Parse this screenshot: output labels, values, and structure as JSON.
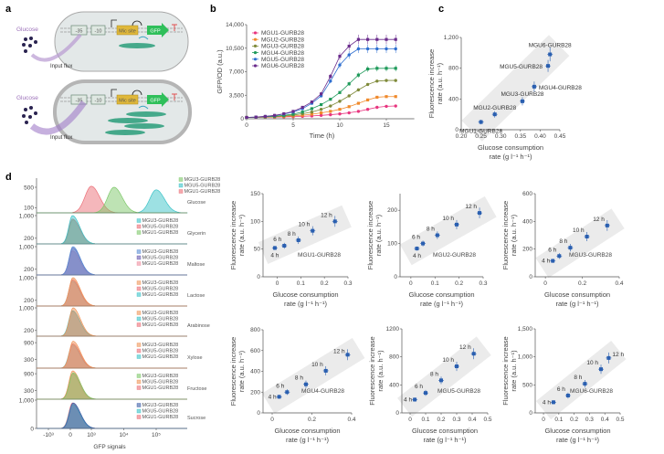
{
  "panel_labels": {
    "a": "a",
    "b": "b",
    "c": "c",
    "d": "d"
  },
  "panel_a": {
    "glucose_label": "Glucose",
    "input_flux_label": "Input flux",
    "minus35": "-35",
    "minus10": "-10",
    "mic_site": "Mic site",
    "gfp": "GFP",
    "colors": {
      "glucose": "#9b6fb8",
      "mic_site": "#e0b83a",
      "gfp": "#2fbf5a",
      "dna": "#2a9d7a",
      "terminator": "#e05050"
    }
  },
  "chart_data": [
    {
      "id": "b",
      "type": "line",
      "xlabel": "Time (h)",
      "ylabel": "GFP/OD (a.u.)",
      "xlim": [
        0,
        18
      ],
      "ylim": [
        0,
        14000
      ],
      "xticks": [
        0,
        5,
        10,
        15
      ],
      "yticks": [
        0,
        3500,
        7000,
        10500,
        14000
      ],
      "ytick_labels": [
        "0",
        "3,500",
        "7,000",
        "10,500",
        "14,000"
      ],
      "legend": "top-left",
      "x": [
        0,
        1,
        2,
        3,
        4,
        5,
        6,
        7,
        8,
        9,
        10,
        11,
        12,
        13,
        14,
        15,
        16
      ],
      "series": [
        {
          "name": "MGU1-GURB28",
          "color": "#e8357f",
          "marker": "circle",
          "values": [
            200,
            200,
            220,
            240,
            270,
            310,
            360,
            420,
            500,
            600,
            720,
            880,
            1100,
            1400,
            1700,
            1850,
            1900
          ]
        },
        {
          "name": "MGU2-GURB28",
          "color": "#f08a2c",
          "marker": "square",
          "values": [
            200,
            210,
            240,
            280,
            340,
            420,
            530,
            680,
            870,
            1100,
            1400,
            1800,
            2300,
            2800,
            3200,
            3300,
            3300
          ]
        },
        {
          "name": "MGU3-GURB28",
          "color": "#7f8a3a",
          "marker": "triangle",
          "values": [
            200,
            220,
            270,
            330,
            420,
            550,
            750,
            1000,
            1400,
            1900,
            2600,
            3400,
            4300,
            5100,
            5600,
            5700,
            5700
          ]
        },
        {
          "name": "MGU4-GURB28",
          "color": "#1f9a5a",
          "marker": "triangle-down",
          "values": [
            200,
            230,
            300,
            380,
            500,
            700,
            1000,
            1500,
            2100,
            2900,
            3900,
            5200,
            6500,
            7400,
            7500,
            7500,
            7500
          ]
        },
        {
          "name": "MGU5-GURB28",
          "color": "#2f6fd0",
          "marker": "diamond",
          "values": [
            200,
            250,
            350,
            480,
            700,
            1000,
            1500,
            2300,
            3400,
            5600,
            8000,
            9500,
            10400,
            10400,
            10400,
            10400,
            10400
          ]
        },
        {
          "name": "MGU6-GURB28",
          "color": "#6a2c8c",
          "marker": "hexagon",
          "values": [
            200,
            250,
            350,
            500,
            750,
            1100,
            1700,
            2500,
            3700,
            6300,
            9300,
            10800,
            11800,
            11800,
            11800,
            11800,
            11800
          ]
        }
      ]
    },
    {
      "id": "c",
      "type": "scatter",
      "xlabel": [
        "Glucose consumption",
        "rate (g l⁻¹ h⁻¹)"
      ],
      "ylabel": [
        "Fluorescence increase",
        "rate (a.u. h⁻¹)"
      ],
      "xlim": [
        0.2,
        0.45
      ],
      "ylim": [
        0,
        1200
      ],
      "xticks": [
        0.2,
        0.25,
        0.3,
        0.35,
        0.4,
        0.45
      ],
      "xtick_labels": [
        "0.20",
        "0.25",
        "0.30",
        "0.35",
        "0.40",
        "0.45"
      ],
      "yticks": [
        0,
        400,
        800,
        1200
      ],
      "ytick_labels": [
        "0",
        "400",
        "800",
        "1,200"
      ],
      "color": "#2a5fb0",
      "points": [
        {
          "label": "MGU1-GURB28",
          "x": 0.25,
          "y": 100
        },
        {
          "label": "MGU2-GURB28",
          "x": 0.285,
          "y": 200
        },
        {
          "label": "MGU3-GURB28",
          "x": 0.355,
          "y": 370
        },
        {
          "label": "MGU4-GURB28",
          "x": 0.385,
          "y": 560
        },
        {
          "label": "MGU5-GURB28",
          "x": 0.42,
          "y": 830
        },
        {
          "label": "MGU6-GURB28",
          "x": 0.425,
          "y": 980
        }
      ]
    },
    {
      "id": "d",
      "type": "histogram",
      "xlabel": "GFP signals",
      "xticks": [
        -1000,
        0,
        1000,
        10000,
        100000
      ],
      "xtick_labels": [
        "-10³",
        "0",
        "10³",
        "10⁴",
        "10⁵"
      ],
      "rows": [
        {
          "condition": "Glucose",
          "ytick_labels": [
            "500",
            "100"
          ],
          "yticks": [
            500,
            100
          ],
          "legend": [
            {
              "name": "MGU3-GURB28",
              "color": "#7ec86a",
              "peak": 5000,
              "height": 500
            },
            {
              "name": "MGU5-GURB28",
              "color": "#3cc3c8",
              "peak": 100000,
              "height": 450
            },
            {
              "name": "MGU1-GURB28",
              "color": "#ec6f78",
              "peak": 1000,
              "height": 520
            }
          ]
        },
        {
          "condition": "Glycerin",
          "ytick_labels": [
            "1,000",
            "200"
          ],
          "yticks": [
            1000,
            200
          ],
          "legend": [
            {
              "name": "MGU3-GURB28",
              "color": "#3cc3c8",
              "peak": 100,
              "height": 1000
            },
            {
              "name": "MGU5-GURB28",
              "color": "#ec6f78",
              "peak": 100,
              "height": 880
            },
            {
              "name": "MGU1-GURB28",
              "color": "#7ec86a",
              "peak": 120,
              "height": 850
            }
          ]
        },
        {
          "condition": "Maltose",
          "ytick_labels": [
            "1,000",
            "200"
          ],
          "yticks": [
            1000,
            200
          ],
          "legend": [
            {
              "name": "MGU3-GURB28",
              "color": "#5b8fd6",
              "peak": 120,
              "height": 1000
            },
            {
              "name": "MGU5-GURB28",
              "color": "#6a5bb0",
              "peak": 120,
              "height": 950
            },
            {
              "name": "MGU1-GURB28",
              "color": "#ef8fa0",
              "peak": 100,
              "height": 850
            }
          ]
        },
        {
          "condition": "Lactose",
          "ytick_labels": [
            "1,000",
            "200"
          ],
          "yticks": [
            1000,
            200
          ],
          "legend": [
            {
              "name": "MGU3-GURB28",
              "color": "#f0965a",
              "peak": 120,
              "height": 1000
            },
            {
              "name": "MGU5-GURB28",
              "color": "#ec6f78",
              "peak": 110,
              "height": 930
            },
            {
              "name": "MGU1-GURB28",
              "color": "#3cc3c8",
              "peak": 100,
              "height": 880
            }
          ]
        },
        {
          "condition": "Arabinose",
          "ytick_labels": [
            "1,000",
            "200"
          ],
          "yticks": [
            1000,
            200
          ],
          "legend": [
            {
              "name": "MGU3-GURB28",
              "color": "#f0965a",
              "peak": 130,
              "height": 1000
            },
            {
              "name": "MGU5-GURB28",
              "color": "#3cc3c8",
              "peak": 100,
              "height": 900
            },
            {
              "name": "MGU1-GURB28",
              "color": "#ec6f78",
              "peak": 110,
              "height": 880
            }
          ]
        },
        {
          "condition": "Xylose",
          "ytick_labels": [
            "900",
            "300"
          ],
          "yticks": [
            900,
            300
          ],
          "legend": [
            {
              "name": "MGU3-GURB28",
              "color": "#f0965a",
              "peak": 130,
              "height": 950
            },
            {
              "name": "MGU5-GURB28",
              "color": "#ec6f78",
              "peak": 120,
              "height": 860
            },
            {
              "name": "MGU1-GURB28",
              "color": "#3cc3c8",
              "peak": 100,
              "height": 820
            }
          ]
        },
        {
          "condition": "Fructose",
          "ytick_labels": [
            "900",
            "300"
          ],
          "yticks": [
            900,
            300
          ],
          "legend": [
            {
              "name": "MGU3-GURB28",
              "color": "#7ec86a",
              "peak": 130,
              "height": 930
            },
            {
              "name": "MGU5-GURB28",
              "color": "#f0965a",
              "peak": 110,
              "height": 1000
            },
            {
              "name": "MGU1-GURB28",
              "color": "#ec6f78",
              "peak": 100,
              "height": 900
            }
          ]
        },
        {
          "condition": "Sucrose",
          "ytick_labels": [
            "1,000",
            "0"
          ],
          "yticks": [
            1000,
            0
          ],
          "legend": [
            {
              "name": "MGU3-GURB28",
              "color": "#3f5fa8",
              "peak": 130,
              "height": 900
            },
            {
              "name": "MGU5-GURB28",
              "color": "#3cc3c8",
              "peak": 110,
              "height": 850
            },
            {
              "name": "MGU1-GURB28",
              "color": "#ec6f78",
              "peak": 100,
              "height": 900
            }
          ]
        }
      ]
    },
    {
      "id": "e1",
      "type": "scatter",
      "strain": "MGU1-GURB28",
      "xlim": [
        -0.06,
        0.3
      ],
      "ylim": [
        0,
        150
      ],
      "xticks": [
        0,
        0.1,
        0.2,
        0.3
      ],
      "xtick_labels": [
        "0",
        "0.1",
        "0.2",
        "0.3"
      ],
      "yticks": [
        0,
        50,
        100,
        150
      ],
      "ytick_labels": [
        "0",
        "50",
        "100",
        "150"
      ],
      "xlabel": [
        "Glucose consumption",
        "rate (g l⁻¹ h⁻¹)"
      ],
      "ylabel": [
        "Fluorescence increase",
        "rate (a.u. h⁻¹)"
      ],
      "points": [
        {
          "label": "4 h",
          "x": -0.01,
          "y": 52
        },
        {
          "label": "6 h",
          "x": 0.03,
          "y": 56
        },
        {
          "label": "8 h",
          "x": 0.09,
          "y": 66
        },
        {
          "label": "10 h",
          "x": 0.15,
          "y": 83
        },
        {
          "label": "12 h",
          "x": 0.245,
          "y": 100
        }
      ]
    },
    {
      "id": "e2",
      "type": "scatter",
      "strain": "MGU2-GURB28",
      "xlim": [
        -0.045,
        0.3
      ],
      "ylim": [
        0,
        250
      ],
      "xticks": [
        0,
        0.1,
        0.2,
        0.3
      ],
      "xtick_labels": [
        "0",
        "0.1",
        "0.2",
        "0.3"
      ],
      "yticks": [
        0,
        100,
        200
      ],
      "ytick_labels": [
        "0",
        "100",
        "200"
      ],
      "xlabel": [
        "Glucose consumption",
        "rate (g l⁻¹ h⁻¹)"
      ],
      "ylabel": [
        "Fluorescence increase",
        "rate (a.u. h⁻¹)"
      ],
      "points": [
        {
          "label": "4 h",
          "x": 0.025,
          "y": 85
        },
        {
          "label": "6 h",
          "x": 0.05,
          "y": 100
        },
        {
          "label": "8 h",
          "x": 0.11,
          "y": 125
        },
        {
          "label": "10 h",
          "x": 0.19,
          "y": 157
        },
        {
          "label": "12 h",
          "x": 0.285,
          "y": 192
        }
      ]
    },
    {
      "id": "e3",
      "type": "scatter",
      "strain": "MGU3-GURB28",
      "xlim": [
        -0.055,
        0.4
      ],
      "ylim": [
        0,
        600
      ],
      "xticks": [
        0,
        0.2,
        0.4
      ],
      "xtick_labels": [
        "0",
        "0.2",
        "0.4"
      ],
      "yticks": [
        0,
        200,
        400,
        600
      ],
      "ytick_labels": [
        "0",
        "200",
        "400",
        "600"
      ],
      "xlabel": [
        "Glucose consumption",
        "rate (g l⁻¹ h⁻¹)"
      ],
      "ylabel": [
        "Fluorescence increase",
        "rate (a.u. h⁻¹)"
      ],
      "points": [
        {
          "label": "4 h",
          "x": 0.04,
          "y": 115
        },
        {
          "label": "6 h",
          "x": 0.075,
          "y": 150
        },
        {
          "label": "8 h",
          "x": 0.135,
          "y": 210
        },
        {
          "label": "10 h",
          "x": 0.225,
          "y": 290
        },
        {
          "label": "12 h",
          "x": 0.335,
          "y": 370
        }
      ]
    },
    {
      "id": "e4",
      "type": "scatter",
      "strain": "MGU4-GURB28",
      "xlim": [
        -0.046,
        0.4
      ],
      "ylim": [
        0,
        800
      ],
      "xticks": [
        0,
        0.2,
        0.4
      ],
      "xtick_labels": [
        "0",
        "0.2",
        "0.4"
      ],
      "yticks": [
        0,
        200,
        400,
        600,
        800
      ],
      "ytick_labels": [
        "0",
        "200",
        "400",
        "600",
        "800"
      ],
      "xlabel": [
        "Glucose consumption",
        "rate (g l⁻¹ h⁻¹)"
      ],
      "ylabel": [
        "Fluorescence increase",
        "rate (a.u. h⁻¹)"
      ],
      "points": [
        {
          "label": "4 h",
          "x": 0.035,
          "y": 155
        },
        {
          "label": "6 h",
          "x": 0.075,
          "y": 200
        },
        {
          "label": "8 h",
          "x": 0.17,
          "y": 275
        },
        {
          "label": "10 h",
          "x": 0.27,
          "y": 405
        },
        {
          "label": "12 h",
          "x": 0.38,
          "y": 560
        }
      ]
    },
    {
      "id": "e5",
      "type": "scatter",
      "strain": "MGU5-GURB28",
      "xlim": [
        -0.053,
        0.5
      ],
      "ylim": [
        0,
        1200
      ],
      "xticks": [
        0,
        0.1,
        0.2,
        0.3,
        0.4,
        0.5
      ],
      "xtick_labels": [
        "0",
        "0.1",
        "0.2",
        "0.3",
        "0.4",
        "0.5"
      ],
      "yticks": [
        0,
        400,
        800,
        1200
      ],
      "ytick_labels": [
        "0",
        "400",
        "800",
        "1200"
      ],
      "xlabel": [
        "Glucose consumption",
        "rate (g l⁻¹ h⁻¹)"
      ],
      "ylabel": [
        "Fluorescence increase",
        "rate (a.u. h⁻¹)"
      ],
      "points": [
        {
          "label": "4 h",
          "x": 0.03,
          "y": 190
        },
        {
          "label": "6 h",
          "x": 0.1,
          "y": 285
        },
        {
          "label": "8 h",
          "x": 0.2,
          "y": 465
        },
        {
          "label": "10 h",
          "x": 0.3,
          "y": 665
        },
        {
          "label": "12 h",
          "x": 0.41,
          "y": 845
        }
      ]
    },
    {
      "id": "e6",
      "type": "scatter",
      "strain": "MGU6-GURB28",
      "xlim": [
        -0.054,
        0.5
      ],
      "ylim": [
        0,
        1500
      ],
      "xticks": [
        0,
        0.1,
        0.2,
        0.3,
        0.4,
        0.5
      ],
      "xtick_labels": [
        "0",
        "0.1",
        "0.2",
        "0.3",
        "0.4",
        "0.5"
      ],
      "yticks": [
        0,
        500,
        1000,
        1500
      ],
      "ytick_labels": [
        "0",
        "500",
        "1,000",
        "1,500"
      ],
      "xlabel": [
        "Glucose consumption",
        "rate (g l⁻¹ h⁻¹)"
      ],
      "ylabel": [
        "Fluorescence increase",
        "rate (a.u. h⁻¹)"
      ],
      "points": [
        {
          "label": "4 h",
          "x": 0.065,
          "y": 190
        },
        {
          "label": "6 h",
          "x": 0.16,
          "y": 310
        },
        {
          "label": "8 h",
          "x": 0.27,
          "y": 520
        },
        {
          "label": "10 h",
          "x": 0.375,
          "y": 780
        },
        {
          "label": "12 h",
          "x": 0.425,
          "y": 980
        }
      ]
    }
  ]
}
